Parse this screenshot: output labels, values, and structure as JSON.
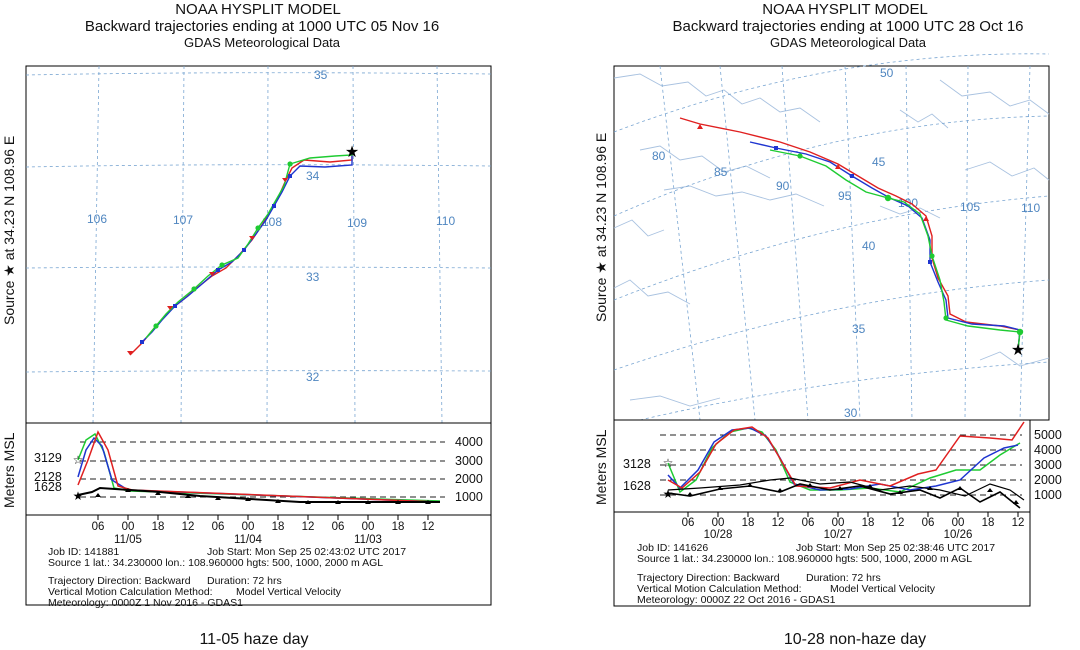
{
  "left": {
    "header": {
      "model": "NOAA HYSPLIT MODEL",
      "title": "Backward trajectories ending at 1000 UTC 05 Nov 16",
      "data": "GDAS Meteorological Data"
    },
    "source_label": "Source ★ at   34.23 N   108.96 E",
    "lon_labels": [
      "106",
      "107",
      "108",
      "109",
      "110"
    ],
    "lat_labels": [
      "35",
      "34",
      "33",
      "32"
    ],
    "height_axis_label": "Meters MSL",
    "height_levels": [
      "4000",
      "3000",
      "2000",
      "1000"
    ],
    "source_heights": [
      "3129",
      "2128",
      "1628"
    ],
    "time_ticks": [
      "06",
      "00",
      "18",
      "12",
      "06",
      "00",
      "18",
      "12",
      "06",
      "00",
      "18",
      "12"
    ],
    "date_labels": [
      "11/05",
      "11/04",
      "11/03"
    ],
    "meta": {
      "job": "Job ID: 141881",
      "job_start": "Job Start: Mon Sep 25 02:43:02 UTC 2017",
      "source": "Source 1 lat.: 34.230000  lon.: 108.960000  hgts: 500, 1000, 2000 m AGL",
      "direction": "Trajectory Direction: Backward",
      "duration": "Duration: 72 hrs",
      "vertical": "Vertical Motion Calculation Method:",
      "vertical_value": "Model Vertical Velocity",
      "meteorology": "Meteorology: 0000Z  1 Nov 2016 - GDAS1"
    },
    "caption": "11-05 haze day"
  },
  "right": {
    "header": {
      "model": "NOAA HYSPLIT MODEL",
      "title": "Backward trajectories ending at 1000 UTC 28 Oct 16",
      "data": "GDAS Meteorological Data"
    },
    "source_label": "Source ★ at   34.23 N   108.96 E",
    "lon_labels": [
      "80",
      "85",
      "90",
      "95",
      "100",
      "105",
      "110"
    ],
    "lat_labels": [
      "50",
      "45",
      "40",
      "35",
      "30"
    ],
    "height_axis_label": "Meters MSL",
    "height_levels": [
      "5000",
      "4000",
      "3000",
      "2000",
      "1000"
    ],
    "source_heights": [
      "3128",
      "1628"
    ],
    "time_ticks": [
      "06",
      "00",
      "18",
      "12",
      "06",
      "00",
      "18",
      "12",
      "06",
      "00",
      "18",
      "12"
    ],
    "date_labels": [
      "10/28",
      "10/27",
      "10/26"
    ],
    "meta": {
      "job": "Job ID: 141626",
      "job_start": "Job Start: Mon Sep 25 02:38:46 UTC 2017",
      "source": "Source 1 lat.: 34.230000  lon.: 108.960000  hgts: 500, 1000, 2000 m AGL",
      "direction": "Trajectory Direction: Backward",
      "duration": "Duration: 72 hrs",
      "vertical": "Vertical Motion Calculation Method:",
      "vertical_value": "Model Vertical Velocity",
      "meteorology": "Meteorology: 0000Z 22 Oct 2016 - GDAS1"
    },
    "caption": "10-28 non-haze day"
  },
  "colors": {
    "red": "#e02020",
    "blue": "#1f35d0",
    "green": "#1ecb32",
    "black": "#000000"
  }
}
